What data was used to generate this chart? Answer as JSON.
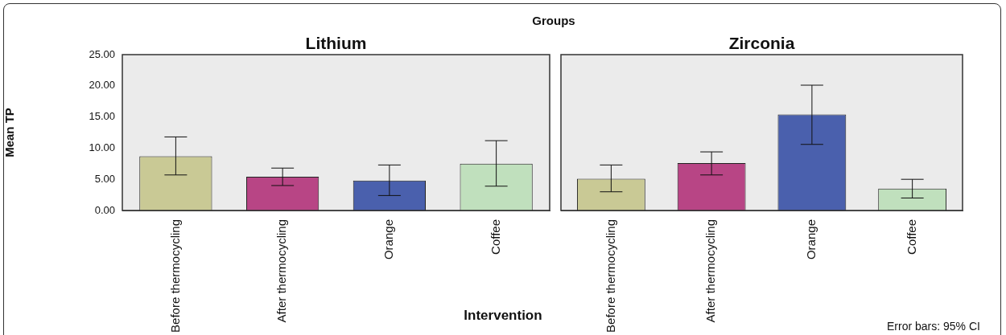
{
  "chart_data": [
    {
      "type": "bar",
      "title": "Lithium",
      "xlabel": "Intervention",
      "ylabel": "Mean TP",
      "annotations": [
        "Groups"
      ],
      "categories": [
        "Before thermocycling",
        "After thermocycling",
        "Orange",
        "Coffee"
      ],
      "values": [
        8.7,
        5.4,
        4.8,
        7.5
      ],
      "colors": [
        "#c9c995",
        "#b84585",
        "#4a60ad",
        "#c0e0bd"
      ],
      "errors": [
        [
          5.7,
          11.8
        ],
        [
          4.0,
          6.8
        ],
        [
          2.4,
          7.3
        ],
        [
          3.9,
          11.2
        ]
      ],
      "ylim": [
        0,
        25
      ],
      "yticks": [
        {
          "value": 0,
          "label": "0.00"
        },
        {
          "value": 5,
          "label": "5.00"
        },
        {
          "value": 10,
          "label": "10.00"
        },
        {
          "value": 15,
          "label": "15.00"
        },
        {
          "value": 20,
          "label": "20.00"
        },
        {
          "value": 25,
          "label": "25.00"
        }
      ]
    },
    {
      "type": "bar",
      "title": "Zirconia",
      "annotations": [
        "Error bars: 95% CI"
      ],
      "tick_labels": "x",
      "categories": [
        "Before thermocycling",
        "After thermocycling",
        "Orange",
        "Coffee"
      ],
      "values": [
        5.1,
        7.6,
        15.4,
        3.5
      ],
      "colors": [
        "#c9c995",
        "#b84585",
        "#4a60ad",
        "#c0e0bd"
      ],
      "errors": [
        [
          3.0,
          7.3
        ],
        [
          5.7,
          9.4
        ],
        [
          10.6,
          20.1
        ],
        [
          2.0,
          5.0
        ]
      ],
      "ylim": [
        0,
        25
      ]
    }
  ]
}
